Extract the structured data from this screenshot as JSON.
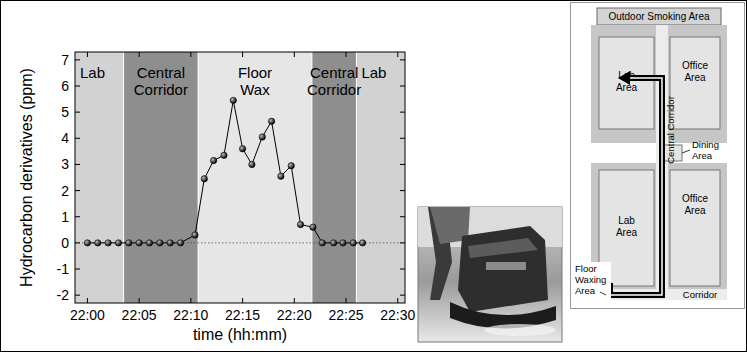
{
  "chart_data": {
    "type": "line",
    "x_label": "time (hh:mm)",
    "y_label": "Hydrocarbon derivatives (ppm)",
    "x": [
      1320,
      1321,
      1322,
      1323,
      1324,
      1325,
      1326,
      1327,
      1328,
      1329,
      1330.4,
      1331.3,
      1332.2,
      1333.2,
      1334.1,
      1335.0,
      1335.9,
      1336.9,
      1337.8,
      1338.7,
      1339.7,
      1340.6,
      1341.8,
      1342.7,
      1343.8,
      1344.7,
      1345.7,
      1346.6
    ],
    "values": [
      0,
      0,
      0,
      0,
      0,
      0,
      0,
      0,
      0,
      0,
      0.3,
      2.45,
      3.15,
      3.35,
      5.45,
      3.6,
      3.0,
      4.05,
      4.65,
      2.55,
      2.95,
      0.7,
      0.6,
      0,
      0,
      0,
      0,
      0
    ],
    "color": "#000000",
    "marker": "circle",
    "line_style": "solid",
    "xlim": [
      1318.8,
      1350.7
    ],
    "xticks": [
      {
        "value": 1320,
        "label": "22:00"
      },
      {
        "value": 1325,
        "label": "22:05"
      },
      {
        "value": 1330,
        "label": "22:10"
      },
      {
        "value": 1335,
        "label": "22:15"
      },
      {
        "value": 1340,
        "label": "22:20"
      },
      {
        "value": 1345,
        "label": "22:25"
      },
      {
        "value": 1350,
        "label": "22:30"
      }
    ],
    "ylim": [
      -2.3,
      7.3
    ],
    "yticks": [
      -2,
      -1,
      0,
      1,
      2,
      3,
      4,
      5,
      6,
      7
    ],
    "grid": false,
    "regions": [
      {
        "label": "Lab",
        "start": 1318.8,
        "end": 1323.5
      },
      {
        "label": "Central Corridor",
        "start": 1323.5,
        "end": 1330.7
      },
      {
        "label": "Floor Wax",
        "start": 1330.7,
        "end": 1341.7
      },
      {
        "label": "Central Corridor",
        "start": 1341.7,
        "end": 1346.0
      },
      {
        "label": "Lab",
        "start": 1346.0,
        "end": 1350.7
      }
    ]
  },
  "floor_plan": {
    "outdoor": "Outdoor Smoking Area",
    "rooms": [
      "Lab Area",
      "Office Area",
      "Lab Area",
      "Office Area"
    ],
    "dining": "Dining Area",
    "central_corridor": "Central Corridor",
    "corridor": "Corridor",
    "waxing": "Floor Waxing Area"
  }
}
